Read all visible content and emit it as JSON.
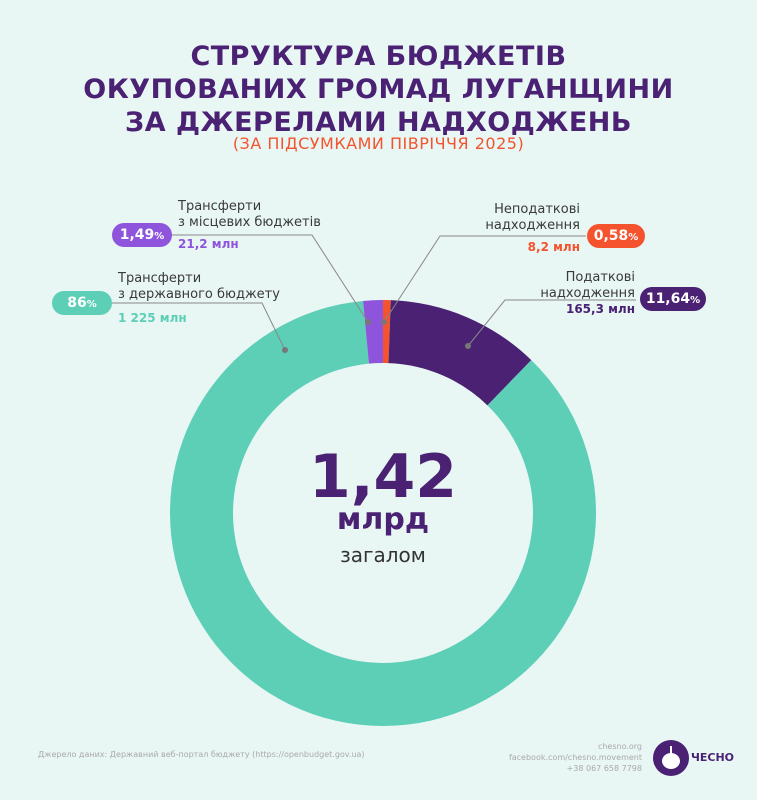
{
  "chart_data": {
    "type": "pie",
    "title": "СТРУКТУРА БЮДЖЕТІВ ОКУПОВАНИХ ГРОМАД ЛУГАНЩИНИ ЗА ДЖЕРЕЛАМИ НАДХОДЖЕНЬ",
    "title_lines": [
      "СТРУКТУРА БЮДЖЕТІВ",
      "ОКУПОВАНИХ ГРОМАД ЛУГАНЩИНИ",
      "ЗА ДЖЕРЕЛАМИ НАДХОДЖЕНЬ"
    ],
    "subtitle": "(ЗА ПІДСУМКАМИ ПІВРІЧЧЯ 2025)",
    "donut": true,
    "center": {
      "value": "1,42",
      "unit": "млрд",
      "label": "загалом"
    },
    "slices": [
      {
        "label_lines": [
          "Неподаткові",
          "надходження"
        ],
        "percent": 0.58,
        "percent_label": "0,58",
        "amount": "8,2 млн",
        "color": "#f4532e"
      },
      {
        "label_lines": [
          "Податкові",
          "надходження"
        ],
        "percent": 11.64,
        "percent_label": "11,64",
        "amount": "165,3 млн",
        "color": "#4a2173"
      },
      {
        "label_lines": [
          "Трансферти",
          "з державного бюджету"
        ],
        "percent": 86,
        "percent_label": "86",
        "amount": "1 225 млн",
        "color": "#5ccfb6"
      },
      {
        "label_lines": [
          "Трансферти",
          "з місцевих бюджетів"
        ],
        "percent": 1.49,
        "percent_label": "1,49",
        "amount": "21,2 млн",
        "color": "#8e55dc"
      }
    ],
    "percent_sign": "%"
  },
  "footer": {
    "source": "Джерело даних: Державний веб-портал бюджету (https://openbudget.gov.ua)",
    "contacts": [
      "chesno.org",
      "facebook.com/chesno.movement",
      "+38 067 658 7798"
    ],
    "logo_text": "ЧЕСНО"
  }
}
